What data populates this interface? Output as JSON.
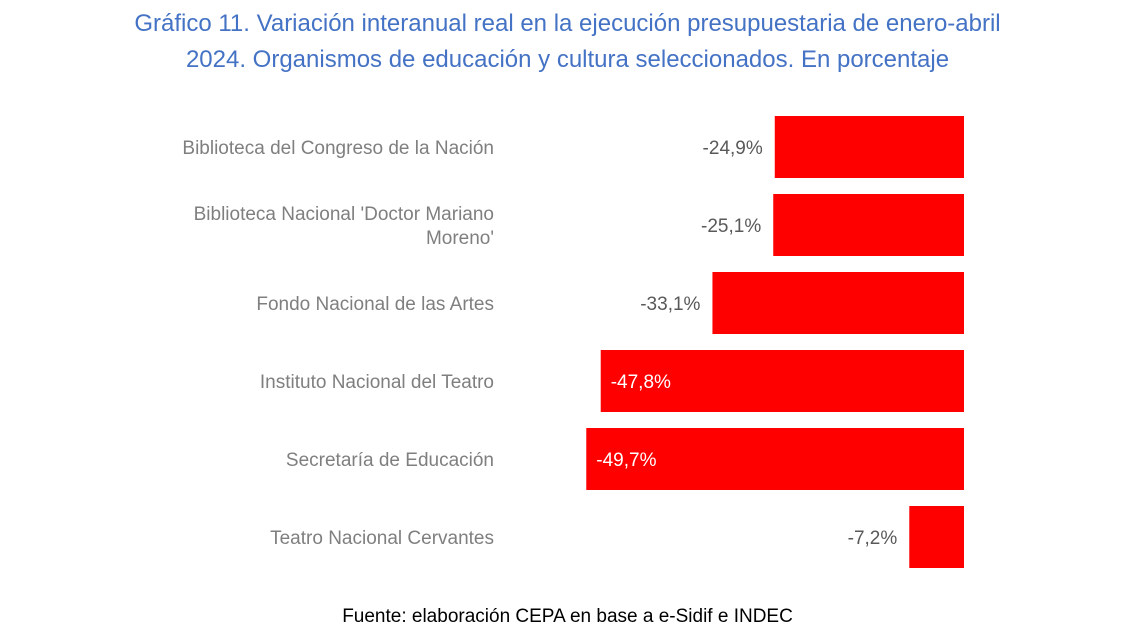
{
  "title_line1": "Gráfico 11. Variación interanual real en la ejecución presupuestaria de enero-abril",
  "title_line2": "2024. Organismos de educación y cultura seleccionados. En porcentaje",
  "source": "Fuente: elaboración CEPA en base a e-Sidif e INDEC",
  "colors": {
    "title": "#4472c4",
    "bar": "#ff0000",
    "category_label": "#7f7f7f",
    "value_label_outside": "#595959",
    "value_label_inside": "#ffffff",
    "source": "#000000"
  },
  "chart_data": {
    "type": "bar",
    "orientation": "horizontal",
    "categories": [
      [
        "Biblioteca del Congreso de la Nación"
      ],
      [
        "Biblioteca Nacional 'Doctor Mariano",
        "Moreno'"
      ],
      [
        "Fondo Nacional de las Artes"
      ],
      [
        "Instituto Nacional del Teatro"
      ],
      [
        "Secretaría de Educación"
      ],
      [
        "Teatro Nacional Cervantes"
      ]
    ],
    "values": [
      -24.9,
      -25.1,
      -33.1,
      -47.8,
      -49.7,
      -7.2
    ],
    "data_labels": [
      "-24,9%",
      "-25,1%",
      "-33,1%",
      "-47,8%",
      "-49,7%",
      "-7,2%"
    ],
    "label_inside": [
      false,
      false,
      false,
      true,
      true,
      false
    ],
    "xlim": [
      -50,
      0
    ],
    "grid": false,
    "legend": "none",
    "xlabel": "",
    "ylabel": ""
  }
}
